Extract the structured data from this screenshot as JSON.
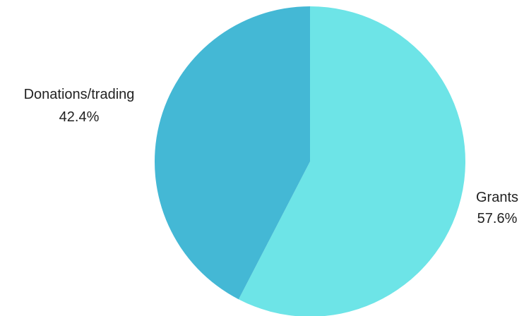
{
  "chart_data": {
    "type": "pie",
    "title": "",
    "slices": [
      {
        "label": "Grants",
        "value": 57.6,
        "value_label": "57.6%",
        "color": "#6de4e7"
      },
      {
        "label": "Donations/trading",
        "value": 42.4,
        "value_label": "42.4%",
        "color": "#44b8d5"
      }
    ],
    "start_angle": "12 o'clock",
    "direction": "clockwise",
    "legend": "none"
  }
}
